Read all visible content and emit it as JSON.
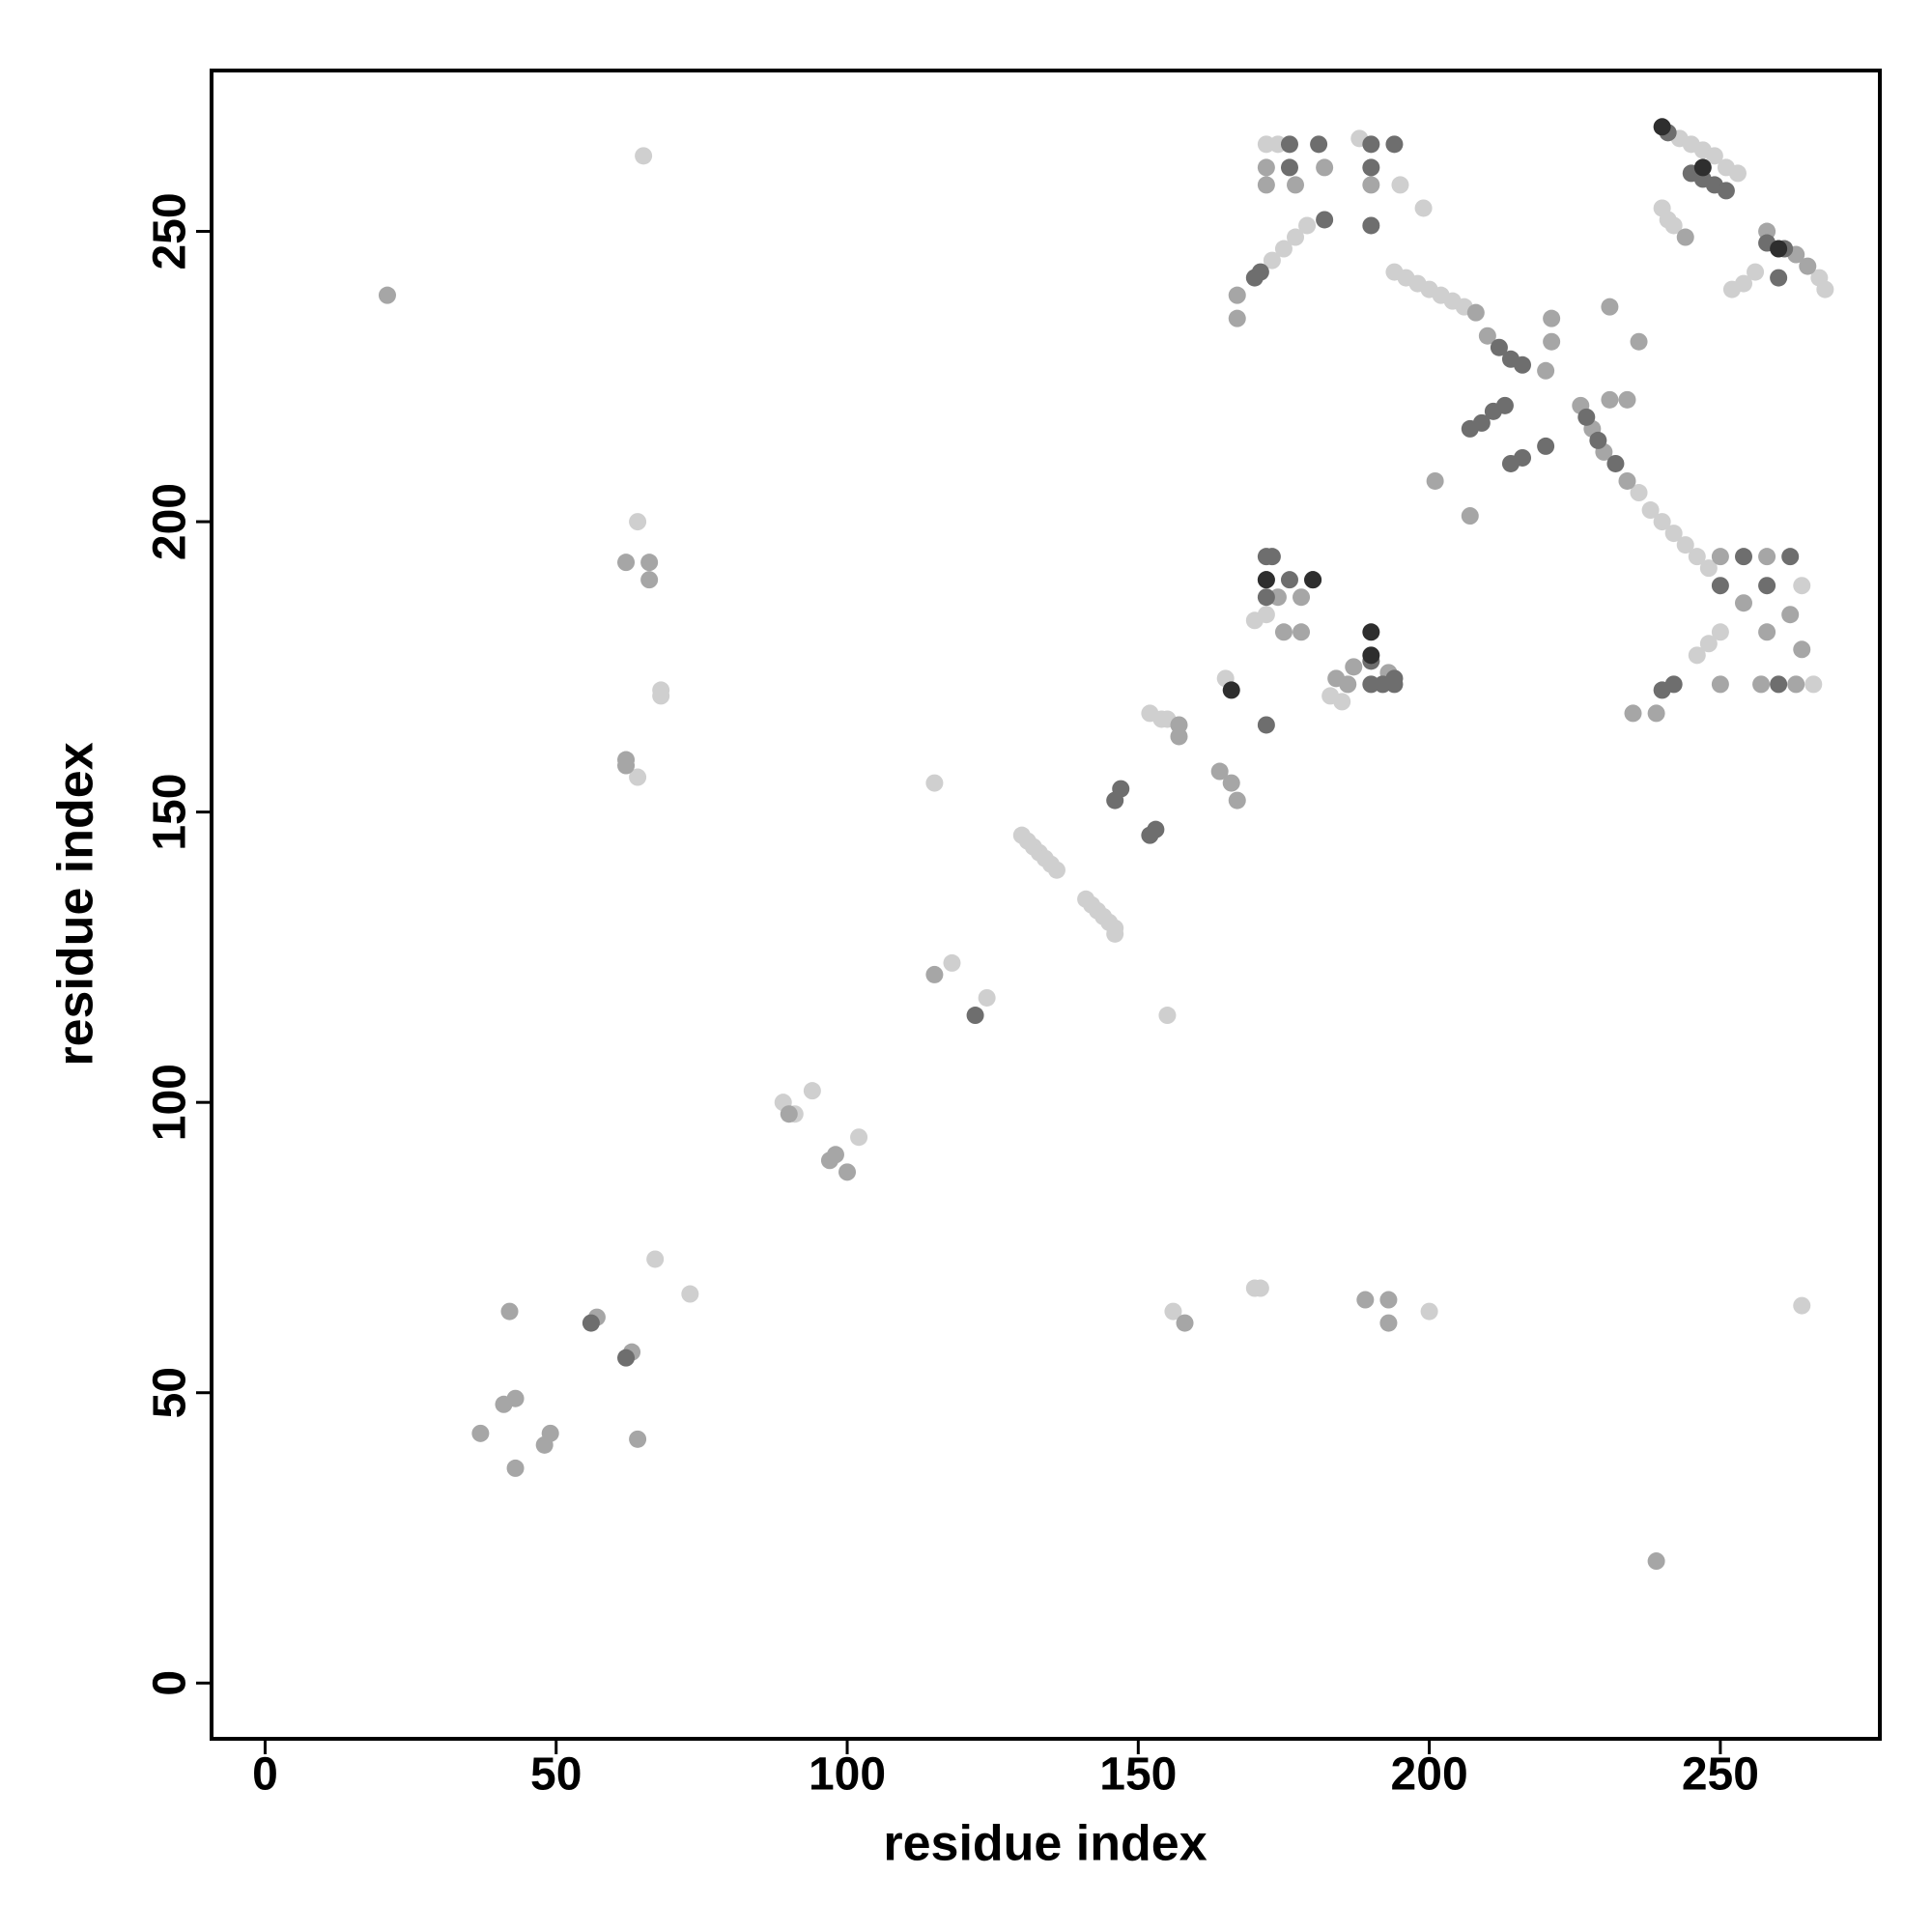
{
  "chart_data": {
    "type": "scatter",
    "x_label": "residue index",
    "y_label": "residue index",
    "xlim": [
      -9.2,
      277.4
    ],
    "ylim": [
      -9.6,
      277.7
    ],
    "xticks": [
      0,
      50,
      100,
      150,
      200,
      250
    ],
    "yticks": [
      0,
      50,
      100,
      150,
      200,
      250
    ],
    "series": [
      {
        "color": "#cfcfcf",
        "x": [
          65,
          64,
          68,
          68,
          64,
          67,
          73,
          89,
          91,
          94,
          102,
          115,
          118,
          124,
          130,
          131,
          132,
          133,
          134,
          135,
          136,
          141,
          142,
          143,
          144,
          145,
          146,
          146,
          152,
          154,
          155,
          165,
          155,
          170,
          171,
          200,
          264,
          170,
          172,
          183,
          185,
          172,
          174,
          188,
          195,
          199,
          173,
          175,
          177,
          179,
          194,
          196,
          198,
          200,
          202,
          204,
          206,
          236,
          238,
          240,
          242,
          244,
          246,
          248,
          246,
          248,
          250,
          264,
          266,
          243,
          245,
          247,
          249,
          240,
          241,
          242,
          251,
          253,
          252,
          254,
          256,
          268,
          267,
          156
        ],
        "y": [
          263,
          200,
          171,
          170,
          156,
          73,
          67,
          100,
          98,
          102,
          94,
          155,
          124,
          118,
          146,
          145,
          144,
          143,
          142,
          141,
          140,
          135,
          134,
          133,
          132,
          131,
          130,
          129,
          167,
          166,
          166,
          173,
          115,
          68,
          68,
          64,
          65,
          183,
          184,
          170,
          169,
          265,
          265,
          266,
          258,
          254,
          245,
          247,
          249,
          251,
          243,
          242,
          241,
          240,
          239,
          238,
          237,
          205,
          202,
          200,
          198,
          196,
          194,
          192,
          177,
          179,
          181,
          189,
          172,
          266,
          265,
          264,
          263,
          254,
          252,
          251,
          261,
          260,
          240,
          241,
          243,
          240,
          242,
          64
        ]
      },
      {
        "color": "#a6a6a6",
        "x": [
          21,
          62,
          66,
          66,
          62,
          62,
          37,
          41,
          43,
          43,
          48,
          49,
          42,
          57,
          63,
          64,
          90,
          97,
          98,
          100,
          115,
          157,
          157,
          164,
          166,
          167,
          189,
          193,
          193,
          158,
          174,
          178,
          175,
          178,
          172,
          182,
          190,
          177,
          172,
          167,
          167,
          221,
          221,
          201,
          207,
          231,
          236,
          234,
          231,
          239,
          226,
          228,
          230,
          234,
          208,
          210,
          220,
          250,
          258,
          254,
          262,
          258,
          264,
          257,
          263,
          250,
          235,
          239,
          244,
          258,
          263,
          265,
          186,
          187,
          193,
          184
        ],
        "y": [
          239,
          193,
          193,
          190,
          159,
          158,
          43,
          48,
          49,
          37,
          41,
          43,
          64,
          63,
          57,
          42,
          98,
          90,
          91,
          88,
          122,
          165,
          163,
          157,
          155,
          152,
          66,
          66,
          62,
          62,
          187,
          187,
          181,
          181,
          261,
          261,
          258,
          258,
          258,
          239,
          235,
          235,
          231,
          207,
          201,
          237,
          231,
          221,
          221,
          21,
          220,
          216,
          212,
          207,
          236,
          232,
          226,
          194,
          194,
          186,
          184,
          181,
          178,
          172,
          172,
          172,
          167,
          167,
          249,
          250,
          246,
          244,
          172,
          175,
          174,
          173
        ]
      },
      {
        "color": "#6e6e6e",
        "x": [
          56,
          62,
          147,
          146,
          153,
          152,
          122,
          172,
          173,
          172,
          176,
          180,
          172,
          172,
          190,
          192,
          194,
          190,
          194,
          176,
          181,
          190,
          194,
          176,
          190,
          182,
          190,
          170,
          171,
          207,
          209,
          211,
          213,
          214,
          216,
          220,
          212,
          214,
          216,
          227,
          229,
          232,
          254,
          262,
          250,
          258,
          242,
          240,
          260,
          241,
          245,
          247,
          249,
          251,
          258,
          261,
          260
        ],
        "y": [
          62,
          56,
          154,
          152,
          147,
          146,
          115,
          194,
          194,
          190,
          190,
          190,
          187,
          165,
          172,
          172,
          172,
          176,
          173,
          265,
          265,
          265,
          265,
          261,
          261,
          252,
          251,
          242,
          243,
          216,
          217,
          219,
          220,
          210,
          211,
          213,
          230,
          228,
          227,
          218,
          214,
          210,
          194,
          194,
          189,
          189,
          172,
          171,
          172,
          267,
          260,
          259,
          258,
          257,
          248,
          247,
          242
        ]
      },
      {
        "color": "#2e2e2e",
        "x": [
          166,
          172,
          180,
          190,
          190,
          247,
          260,
          240
        ],
        "y": [
          171,
          190,
          190,
          181,
          177,
          261,
          247,
          268
        ]
      }
    ]
  }
}
